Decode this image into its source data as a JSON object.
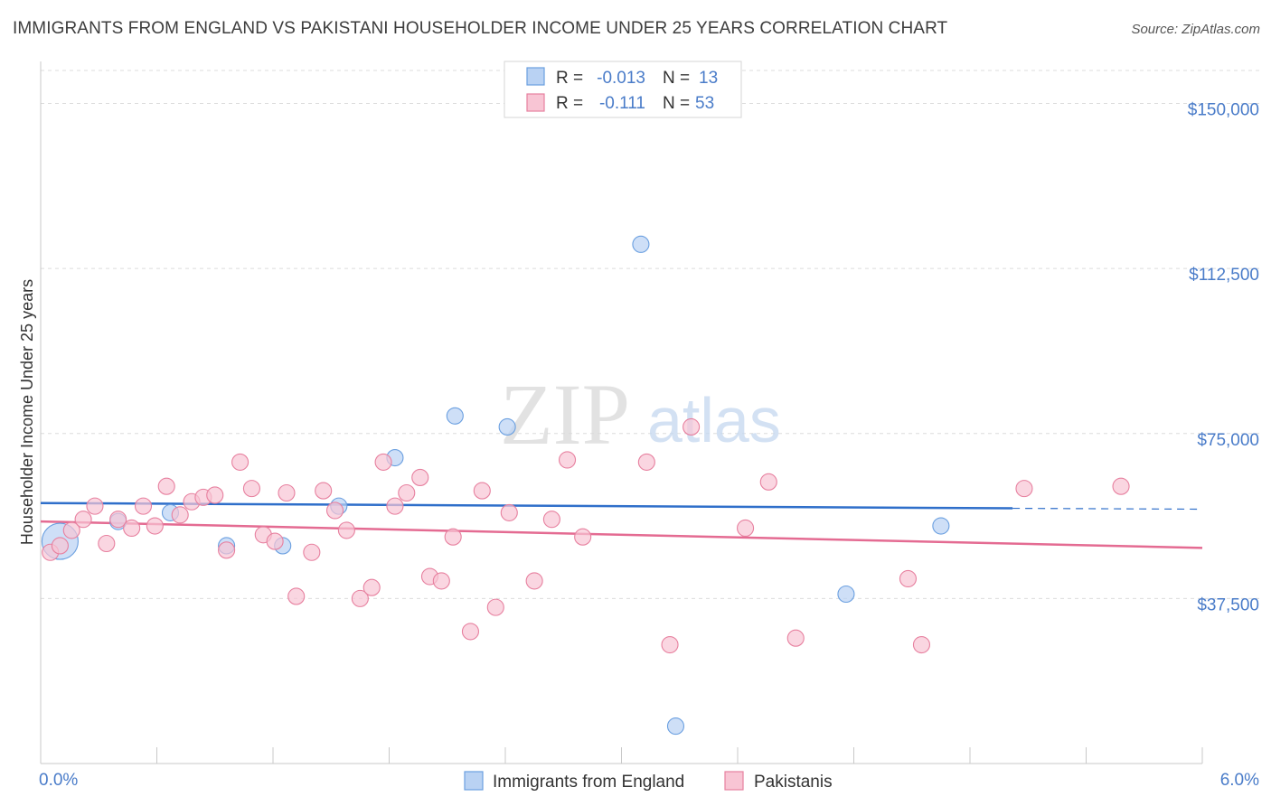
{
  "title": "IMMIGRANTS FROM ENGLAND VS PAKISTANI HOUSEHOLDER INCOME UNDER 25 YEARS CORRELATION CHART",
  "source": "Source: ZipAtlas.com",
  "watermark": {
    "zip": "ZIP",
    "atlas": "atlas"
  },
  "colors": {
    "blue": "#6a9fe0",
    "blue_fill": "#b9d2f3",
    "blue_line": "#2f6fca",
    "pink": "#e7809f",
    "pink_fill": "#f8c5d4",
    "pink_line": "#e46b92",
    "axis_label": "#4a7cc9"
  },
  "stats": [
    {
      "r_label": "R =",
      "r_value": "-0.013",
      "n_label": "N =",
      "n_value": "13",
      "series": "blue"
    },
    {
      "r_label": "R =",
      "r_value": "-0.111",
      "n_label": "N =",
      "n_value": "53",
      "series": "pink"
    }
  ],
  "chart_data": {
    "type": "scatter",
    "title": "IMMIGRANTS FROM ENGLAND VS PAKISTANI HOUSEHOLDER INCOME UNDER 25 YEARS CORRELATION CHART",
    "xlabel": "",
    "ylabel": "Householder Income Under 25 years",
    "xlim": [
      0,
      6
    ],
    "ylim": [
      0,
      157500
    ],
    "x_tick_labels": [
      "0.0%",
      "6.0%"
    ],
    "y_ticks": [
      37500,
      75000,
      112500,
      150000
    ],
    "y_tick_labels": [
      "$37,500",
      "$75,000",
      "$112,500",
      "$150,000"
    ],
    "grid": true,
    "legend_position": "bottom-center",
    "series": [
      {
        "name": "Immigrants from England",
        "color": "blue",
        "trend": {
          "x": [
            0.0,
            5.02
          ],
          "y": [
            59200,
            58000
          ],
          "dash_x": [
            5.02,
            6.0
          ],
          "dash_y": [
            58000,
            57800
          ]
        },
        "points": [
          [
            0.1,
            50500
          ],
          [
            0.4,
            55000
          ],
          [
            0.67,
            57000
          ],
          [
            0.96,
            49500
          ],
          [
            1.25,
            49500
          ],
          [
            1.54,
            58500
          ],
          [
            1.83,
            69500
          ],
          [
            2.14,
            79000
          ],
          [
            2.41,
            76500
          ],
          [
            3.1,
            118000
          ],
          [
            3.28,
            8500
          ],
          [
            4.16,
            38500
          ],
          [
            4.65,
            54000
          ]
        ]
      },
      {
        "name": "Pakistanis",
        "color": "pink",
        "trend": {
          "x": [
            0.0,
            6.0
          ],
          "y": [
            55000,
            49000
          ]
        },
        "points": [
          [
            0.05,
            48000
          ],
          [
            0.1,
            49500
          ],
          [
            0.16,
            53000
          ],
          [
            0.22,
            55500
          ],
          [
            0.28,
            58500
          ],
          [
            0.34,
            50000
          ],
          [
            0.4,
            55500
          ],
          [
            0.47,
            53500
          ],
          [
            0.53,
            58500
          ],
          [
            0.59,
            54000
          ],
          [
            0.65,
            63000
          ],
          [
            0.72,
            56500
          ],
          [
            0.78,
            59500
          ],
          [
            0.84,
            60500
          ],
          [
            0.9,
            61000
          ],
          [
            0.96,
            48500
          ],
          [
            1.03,
            68500
          ],
          [
            1.09,
            62500
          ],
          [
            1.15,
            52000
          ],
          [
            1.21,
            50500
          ],
          [
            1.27,
            61500
          ],
          [
            1.32,
            38000
          ],
          [
            1.4,
            48000
          ],
          [
            1.46,
            62000
          ],
          [
            1.52,
            57500
          ],
          [
            1.58,
            53000
          ],
          [
            1.65,
            37500
          ],
          [
            1.71,
            40000
          ],
          [
            1.77,
            68500
          ],
          [
            1.83,
            58500
          ],
          [
            1.89,
            61500
          ],
          [
            1.96,
            65000
          ],
          [
            2.01,
            42500
          ],
          [
            2.07,
            41500
          ],
          [
            2.13,
            51500
          ],
          [
            2.22,
            30000
          ],
          [
            2.28,
            62000
          ],
          [
            2.35,
            35500
          ],
          [
            2.42,
            57000
          ],
          [
            2.55,
            41500
          ],
          [
            2.64,
            55500
          ],
          [
            2.72,
            69000
          ],
          [
            2.8,
            51500
          ],
          [
            3.13,
            68500
          ],
          [
            3.25,
            27000
          ],
          [
            3.36,
            76500
          ],
          [
            3.64,
            53500
          ],
          [
            3.76,
            64000
          ],
          [
            3.9,
            28500
          ],
          [
            4.48,
            42000
          ],
          [
            4.55,
            27000
          ],
          [
            5.08,
            62500
          ],
          [
            5.58,
            63000
          ]
        ]
      }
    ]
  }
}
